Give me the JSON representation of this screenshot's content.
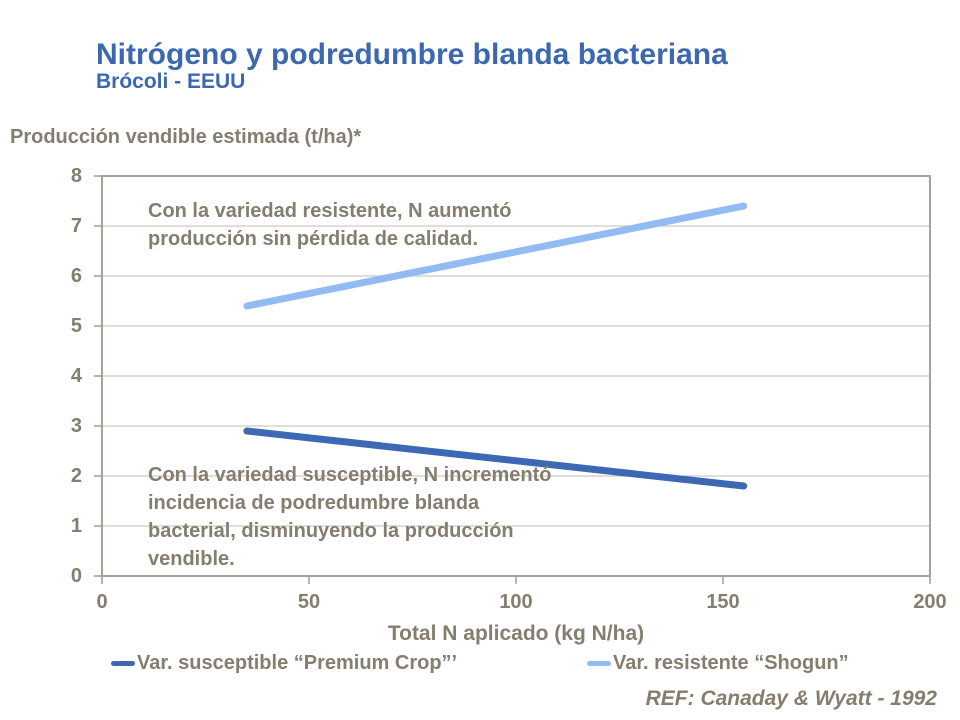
{
  "slide": {
    "title": "Nitrógeno y podredumbre blanda bacteriana",
    "subtitle": "Brócoli - EEUU",
    "y_axis_caption": "Producción vendible estimada (t/ha)*",
    "reference": "REF: Canaday & Wyatt - 1992"
  },
  "annotations": {
    "resistant": "Con la variedad resistente, N aumentó\nproducción sin pérdida de calidad.",
    "susceptible": "Con la variedad susceptible, N incrementó\nincidencia de podredumbre blanda\nbacterial, disminuyendo la producción\nvendible."
  },
  "colors": {
    "title": "#3c68b0",
    "text": "#857d6e",
    "frame": "#a8a29a",
    "gridline": "#cdc9c2",
    "susceptible_line": "#3e68b4",
    "resistant_line": "#92bbf2"
  },
  "chart_data": {
    "type": "line",
    "title": "Nitrógeno y podredumbre blanda bacteriana",
    "subtitle": "Brócoli - EEUU",
    "xlabel": "Total N aplicado (kg N/ha)",
    "ylabel": "Producción vendible estimada (t/ha)*",
    "xlim": [
      0,
      200
    ],
    "ylim": [
      0,
      8
    ],
    "xticks": [
      0,
      50,
      100,
      150,
      200
    ],
    "yticks": [
      0,
      1,
      2,
      3,
      4,
      5,
      6,
      7,
      8
    ],
    "grid": "horizontal-only",
    "legend_position": "bottom",
    "series": [
      {
        "name": "Var. susceptible “Premium Crop”’",
        "color": "#3e68b4",
        "x": [
          35,
          155
        ],
        "y": [
          2.9,
          1.8
        ]
      },
      {
        "name": "Var. resistente “Shogun”",
        "color": "#92bbf2",
        "x": [
          35,
          155
        ],
        "y": [
          5.4,
          7.4
        ]
      }
    ]
  }
}
